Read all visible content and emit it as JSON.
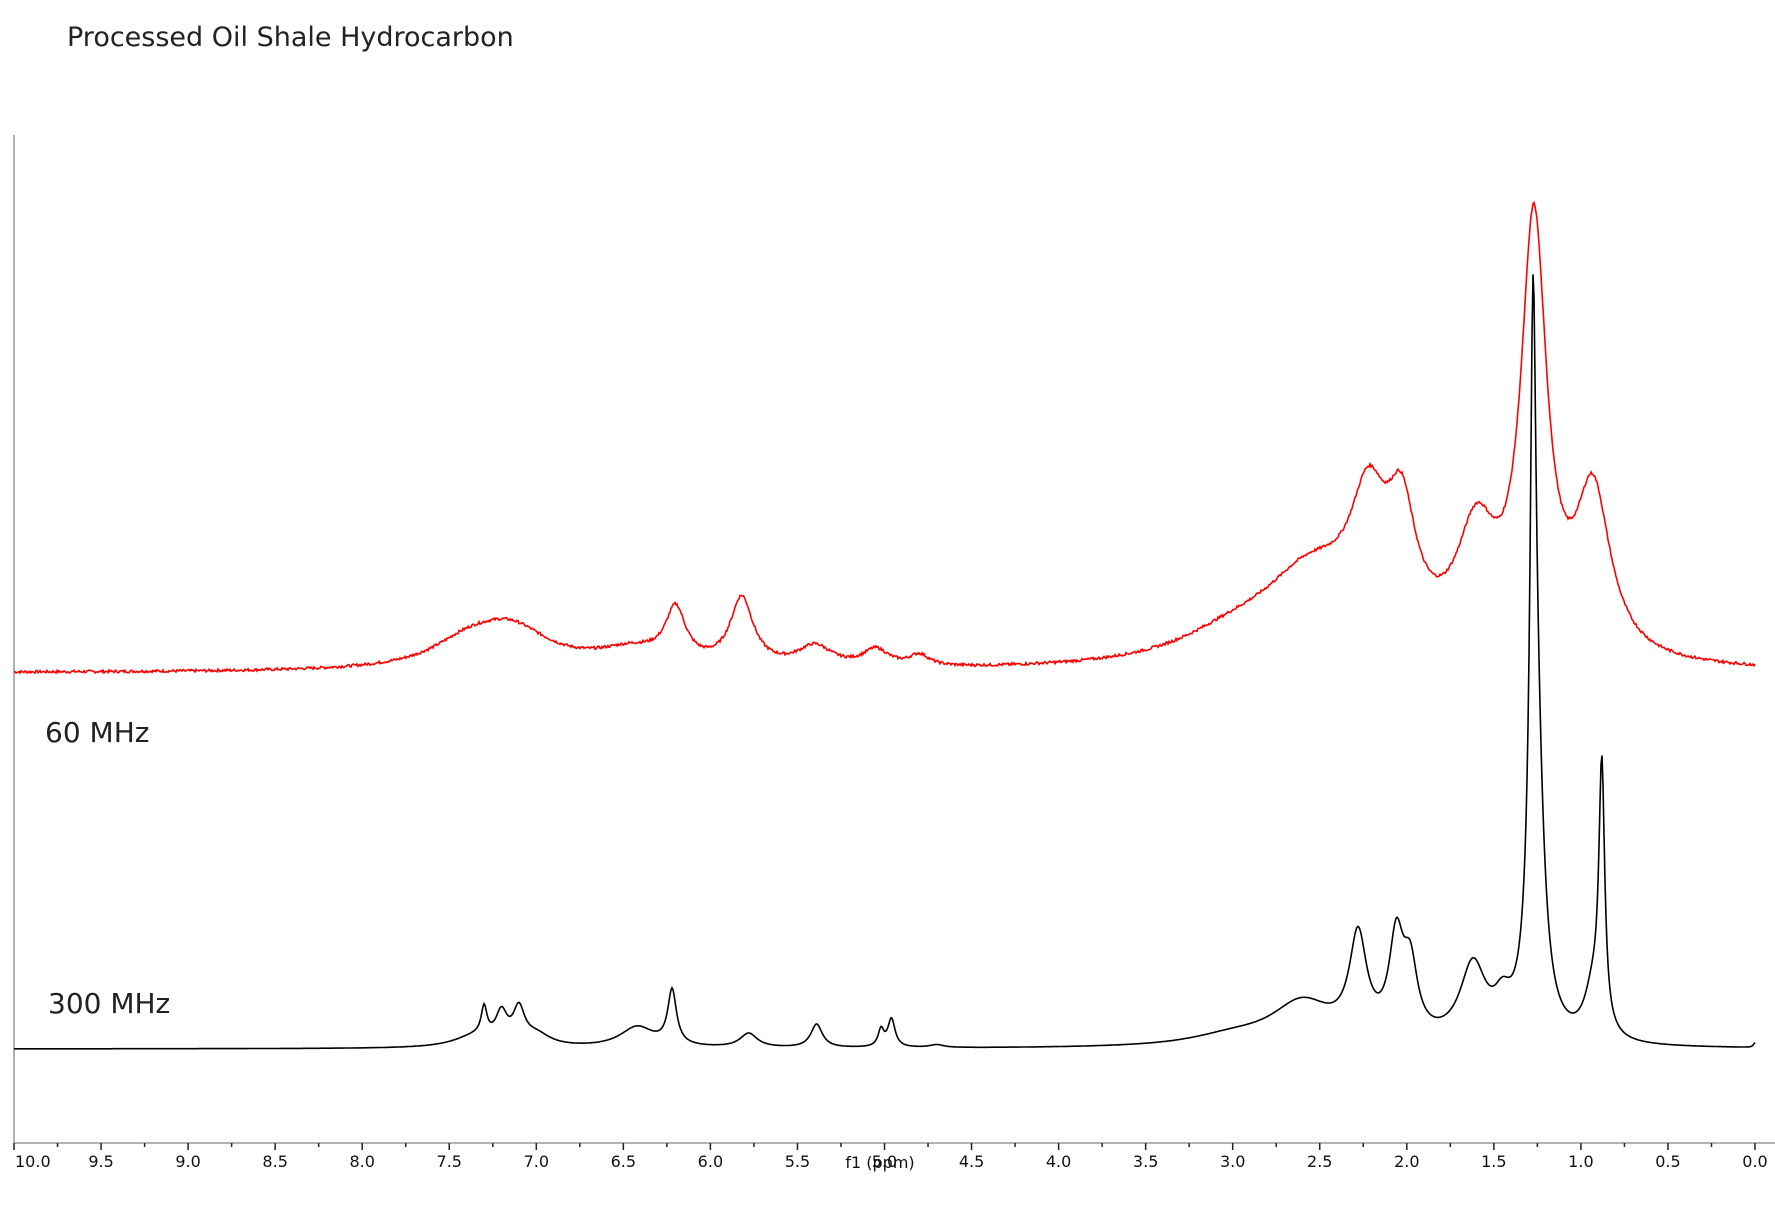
{
  "chart_data": {
    "type": "line",
    "title": "Processed Oil Shale Hydrocarbon",
    "xlabel": "f1 (ppm)",
    "ylabel": "",
    "x_reversed": true,
    "xlim": [
      10.0,
      0.0
    ],
    "ylim": [
      -0.1,
      1.1
    ],
    "grid": false,
    "legend": "none",
    "xticks": [
      "10.0",
      "9.5",
      "9.0",
      "8.5",
      "8.0",
      "7.5",
      "7.0",
      "6.5",
      "6.0",
      "5.5",
      "5.0",
      "4.5",
      "4.0",
      "3.5",
      "3.0",
      "2.5",
      "2.0",
      "1.5",
      "1.0",
      "0.5",
      "0.0"
    ],
    "series": [
      {
        "name": "60 MHz",
        "color": "#ff0000",
        "baseline": 0.4,
        "peaks": [
          {
            "ppm": 7.15,
            "height": 0.042,
            "width": 0.28
          },
          {
            "ppm": 7.4,
            "height": 0.022,
            "width": 0.25
          },
          {
            "ppm": 6.45,
            "height": 0.018,
            "width": 0.25
          },
          {
            "ppm": 6.2,
            "height": 0.055,
            "width": 0.07
          },
          {
            "ppm": 5.82,
            "height": 0.072,
            "width": 0.08
          },
          {
            "ppm": 5.4,
            "height": 0.022,
            "width": 0.12
          },
          {
            "ppm": 5.05,
            "height": 0.018,
            "width": 0.09
          },
          {
            "ppm": 4.8,
            "height": 0.012,
            "width": 0.07
          },
          {
            "ppm": 2.55,
            "height": 0.09,
            "width": 0.35
          },
          {
            "ppm": 2.22,
            "height": 0.13,
            "width": 0.13
          },
          {
            "ppm": 2.03,
            "height": 0.12,
            "width": 0.1
          },
          {
            "ppm": 3.0,
            "height": 0.025,
            "width": 0.4
          },
          {
            "ppm": 1.6,
            "height": 0.12,
            "width": 0.14
          },
          {
            "ppm": 1.27,
            "height": 0.45,
            "width": 0.09
          },
          {
            "ppm": 0.93,
            "height": 0.17,
            "width": 0.12
          }
        ]
      },
      {
        "name": "300 MHz",
        "color": "#000000",
        "baseline": 0.0,
        "peaks": [
          {
            "ppm": 7.3,
            "height": 0.03,
            "width": 0.02
          },
          {
            "ppm": 7.2,
            "height": 0.03,
            "width": 0.04
          },
          {
            "ppm": 7.1,
            "height": 0.035,
            "width": 0.04
          },
          {
            "ppm": 7.0,
            "height": 0.012,
            "width": 0.1
          },
          {
            "ppm": 7.35,
            "height": 0.012,
            "width": 0.15
          },
          {
            "ppm": 6.42,
            "height": 0.022,
            "width": 0.12
          },
          {
            "ppm": 6.22,
            "height": 0.058,
            "width": 0.03
          },
          {
            "ppm": 5.78,
            "height": 0.015,
            "width": 0.06
          },
          {
            "ppm": 5.39,
            "height": 0.025,
            "width": 0.04
          },
          {
            "ppm": 5.02,
            "height": 0.018,
            "width": 0.02
          },
          {
            "ppm": 4.96,
            "height": 0.03,
            "width": 0.025
          },
          {
            "ppm": 4.7,
            "height": 0.003,
            "width": 0.05
          },
          {
            "ppm": 2.6,
            "height": 0.045,
            "width": 0.22
          },
          {
            "ppm": 3.0,
            "height": 0.01,
            "width": 0.3
          },
          {
            "ppm": 2.28,
            "height": 0.105,
            "width": 0.06
          },
          {
            "ppm": 2.06,
            "height": 0.1,
            "width": 0.05
          },
          {
            "ppm": 1.98,
            "height": 0.07,
            "width": 0.05
          },
          {
            "ppm": 1.62,
            "height": 0.08,
            "width": 0.09
          },
          {
            "ppm": 1.45,
            "height": 0.03,
            "width": 0.06
          },
          {
            "ppm": 1.275,
            "height": 0.57,
            "width": 0.02
          },
          {
            "ppm": 1.255,
            "height": 0.28,
            "width": 0.05
          },
          {
            "ppm": 0.88,
            "height": 0.275,
            "width": 0.02
          },
          {
            "ppm": 0.93,
            "height": 0.05,
            "width": 0.06
          },
          {
            "ppm": 0.0,
            "height": 0.005,
            "width": 0.01
          }
        ]
      }
    ]
  }
}
